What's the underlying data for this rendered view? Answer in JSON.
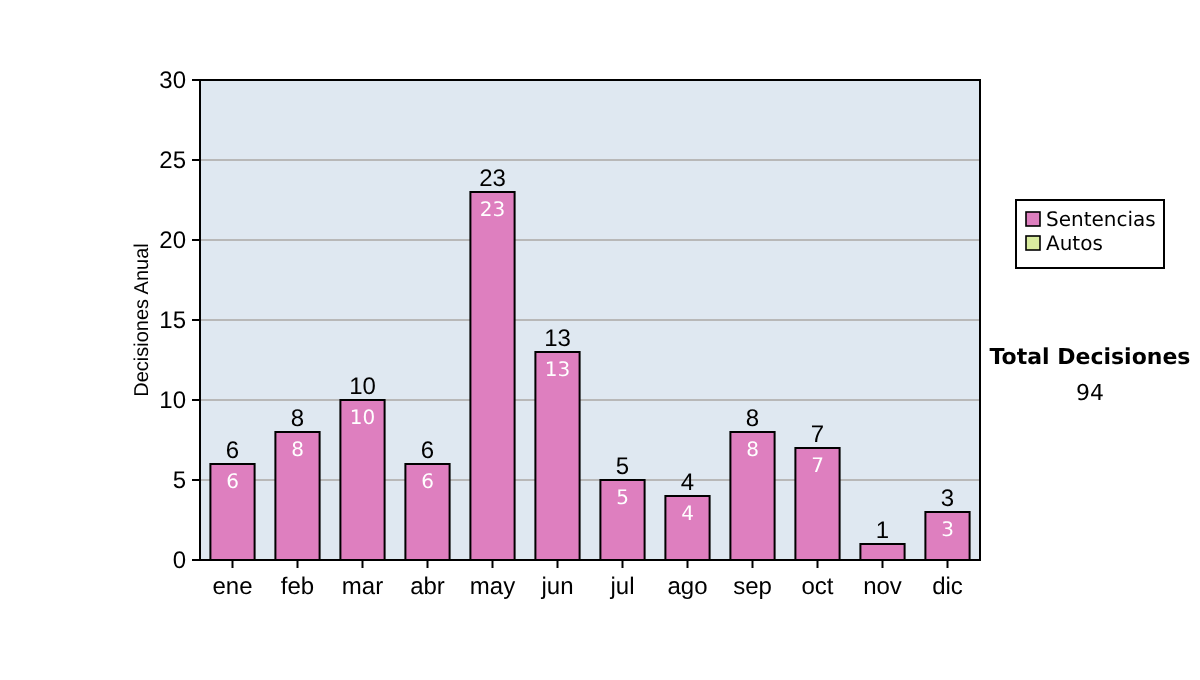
{
  "chart_data": {
    "type": "bar",
    "ylabel": "Decisiones Anual",
    "categories": [
      "ene",
      "feb",
      "mar",
      "abr",
      "may",
      "jun",
      "jul",
      "ago",
      "sep",
      "oct",
      "nov",
      "dic"
    ],
    "series": [
      {
        "name": "Sentencias",
        "color": "#de7fbf",
        "values": [
          6,
          8,
          10,
          6,
          23,
          13,
          5,
          4,
          8,
          7,
          1,
          3
        ],
        "value_labels": [
          "6",
          "8",
          "10",
          "6",
          "23",
          "13",
          "5",
          "4",
          "8",
          "7",
          null,
          "3"
        ]
      },
      {
        "name": "Autos",
        "color": "#d9ec9f",
        "values": [
          0,
          0,
          0,
          0,
          0,
          0,
          0,
          0,
          0,
          0,
          0,
          0
        ]
      }
    ],
    "stacked": true,
    "totals": [
      "6",
      "8",
      "10",
      "6",
      "23",
      "13",
      "5",
      "4",
      "8",
      "7",
      "1",
      "3"
    ],
    "ylim": [
      0,
      30
    ],
    "yticks": [
      0,
      5,
      10,
      15,
      20,
      25,
      30
    ],
    "grid": "y",
    "legend": "right",
    "annotations": [
      "Total Decisiones",
      "94"
    ]
  }
}
